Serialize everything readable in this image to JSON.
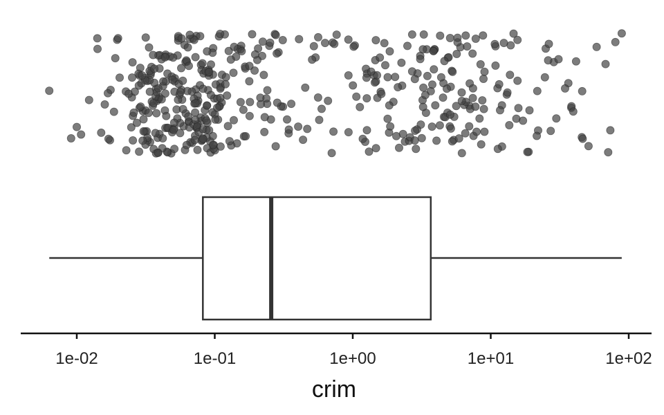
{
  "chart_data": {
    "type": "boxplot-with-jitter",
    "xlabel": "crim",
    "x_scale": "log10",
    "xlim": [
      0.0033,
      140
    ],
    "ticks": [
      {
        "value": 0.01,
        "label": "1e-02"
      },
      {
        "value": 0.1,
        "label": "1e-01"
      },
      {
        "value": 1,
        "label": "1e+00"
      },
      {
        "value": 10,
        "label": "1e+01"
      },
      {
        "value": 100,
        "label": "1e+02"
      }
    ],
    "boxplot": {
      "min": 0.00632,
      "q1": 0.082,
      "median": 0.2565,
      "q3": 3.677,
      "max": 88.976
    },
    "jitter": {
      "n_points": 506,
      "point_color": "#444444",
      "point_opacity": 0.7,
      "visible_extremes": [
        0.00632,
        0.0091,
        0.0174,
        0.0286,
        0.0382,
        0.0484,
        0.0614,
        0.0735,
        0.0927,
        0.1129,
        0.1427,
        0.1865,
        0.2288,
        0.2898,
        0.3585,
        0.4526,
        0.5612,
        0.7247,
        0.9297,
        1.1265,
        1.4252,
        1.8337,
        2.3139,
        2.9239,
        3.6766,
        4.5415,
        5.6664,
        7.0436,
        8.792,
        10.8342,
        13.0751,
        15.8744,
        18.8117,
        22.0511,
        25.0461,
        28.6558,
        38.3518,
        41.5292,
        45.7461,
        51.1358,
        67.9208,
        73.5341,
        88.9762
      ]
    },
    "colors": {
      "box_stroke": "#333333",
      "median_stroke": "#333333",
      "axis": "#111111"
    }
  }
}
